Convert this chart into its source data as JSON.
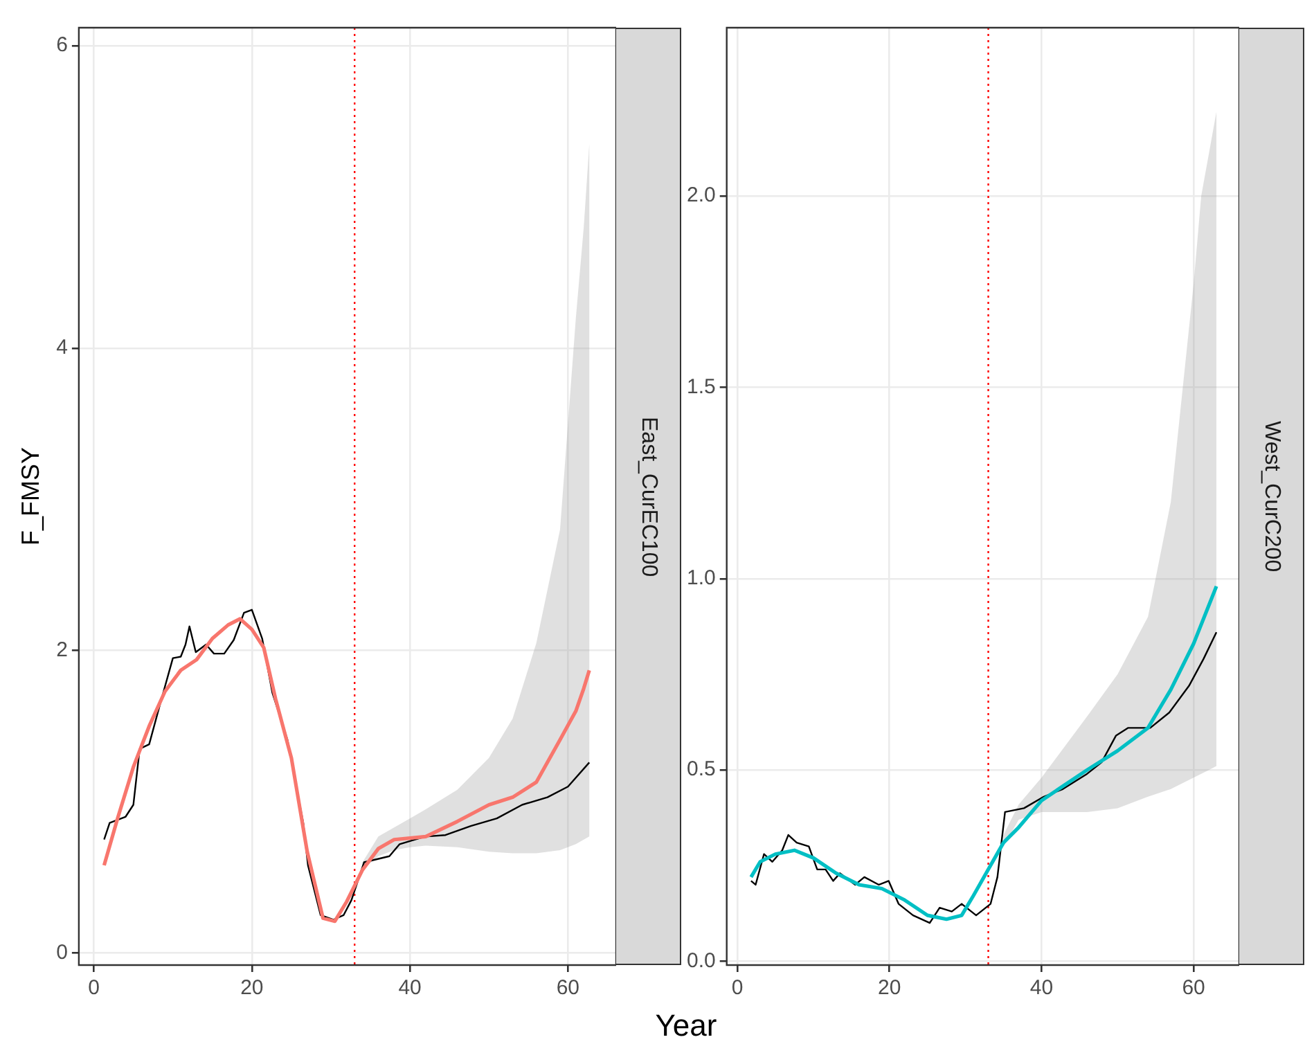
{
  "chart_data": [
    {
      "type": "line",
      "annotations": [
        "East_CurEC100"
      ],
      "ylabel": "F_FMSY",
      "xlabel": "Year",
      "xlim": [
        -1.9,
        66.1
      ],
      "ylim": [
        -0.08,
        6.12
      ],
      "xticks": [
        0,
        20,
        40,
        60
      ],
      "yticks": [
        0,
        2,
        4,
        6
      ],
      "grid": true,
      "ref_lines": [
        {
          "axis": "x",
          "value": 33,
          "color": "#ff0000",
          "line_style": "dotted"
        }
      ],
      "series": [
        {
          "color": "#f8766d",
          "x": [
            1.3,
            3,
            5,
            7,
            9,
            11,
            13,
            15,
            17,
            18.5,
            20,
            21.5,
            23,
            25,
            27,
            29,
            30.5,
            32,
            34,
            36,
            38,
            40,
            42,
            46,
            50,
            53,
            56,
            59,
            61,
            62,
            62.7
          ],
          "values": [
            0.58,
            0.89,
            1.23,
            1.5,
            1.73,
            1.87,
            1.94,
            2.08,
            2.17,
            2.21,
            2.14,
            2.02,
            1.68,
            1.29,
            0.67,
            0.23,
            0.21,
            0.34,
            0.55,
            0.69,
            0.75,
            0.76,
            0.77,
            0.87,
            0.98,
            1.03,
            1.13,
            1.41,
            1.6,
            1.75,
            1.87
          ],
          "lower": [
            null,
            null,
            null,
            null,
            null,
            null,
            null,
            null,
            null,
            null,
            null,
            null,
            null,
            null,
            null,
            null,
            null,
            null,
            0.55,
            0.64,
            0.68,
            0.7,
            0.71,
            0.7,
            0.67,
            0.66,
            0.66,
            0.68,
            0.72,
            0.75,
            0.77
          ],
          "upper": [
            null,
            null,
            null,
            null,
            null,
            null,
            null,
            null,
            null,
            null,
            null,
            null,
            null,
            null,
            null,
            null,
            null,
            null,
            0.6,
            0.77,
            0.83,
            0.89,
            0.95,
            1.08,
            1.29,
            1.55,
            2.05,
            2.8,
            4.2,
            4.8,
            5.35
          ]
        },
        {
          "color": "#000000",
          "x": [
            1.3,
            2,
            4,
            5,
            5.8,
            7,
            8.4,
            10,
            11,
            11.6,
            12.1,
            12.9,
            14.2,
            15.2,
            16.5,
            17.7,
            19,
            20,
            21.3,
            22.6,
            24.5,
            26.5,
            27.1,
            28.7,
            30.3,
            31.6,
            32.6,
            34.2,
            37.4,
            38.7,
            41.9,
            44.5,
            47.7,
            51,
            54.2,
            57.4,
            60,
            62.7
          ],
          "values": [
            0.75,
            0.86,
            0.9,
            0.98,
            1.35,
            1.38,
            1.65,
            1.95,
            1.96,
            2.04,
            2.16,
            1.99,
            2.04,
            1.98,
            1.98,
            2.07,
            2.25,
            2.27,
            2.08,
            1.72,
            1.41,
            0.86,
            0.58,
            0.25,
            0.22,
            0.25,
            0.35,
            0.6,
            0.64,
            0.72,
            0.77,
            0.78,
            0.84,
            0.89,
            0.98,
            1.03,
            1.1,
            1.26
          ]
        }
      ]
    },
    {
      "type": "line",
      "annotations": [
        "West_CurC200"
      ],
      "xlim": [
        -1.4,
        66
      ],
      "ylim": [
        -0.01,
        2.44
      ],
      "xticks": [
        0,
        20,
        40,
        60
      ],
      "yticks": [
        {
          "value": 0,
          "label": "0.0"
        },
        0.5,
        {
          "value": 1,
          "label": "1.0"
        },
        1.5,
        {
          "value": 2,
          "label": "2.0"
        }
      ],
      "grid": true,
      "ref_lines": [
        {
          "axis": "x",
          "value": 33,
          "color": "#ff0000",
          "line_style": "dotted"
        }
      ],
      "series": [
        {
          "color": "#00bfc4",
          "x": [
            1.8,
            3,
            5,
            7.5,
            10,
            13,
            16,
            19,
            22,
            25,
            27.5,
            29.5,
            31,
            33,
            35,
            37,
            40,
            43,
            46,
            50,
            54,
            57,
            60,
            61,
            62,
            63
          ],
          "values": [
            0.22,
            0.26,
            0.28,
            0.29,
            0.27,
            0.23,
            0.2,
            0.19,
            0.16,
            0.12,
            0.11,
            0.12,
            0.17,
            0.24,
            0.31,
            0.35,
            0.42,
            0.46,
            0.5,
            0.55,
            0.61,
            0.71,
            0.83,
            0.88,
            0.93,
            0.98
          ],
          "lower": [
            null,
            null,
            null,
            null,
            null,
            null,
            null,
            null,
            null,
            null,
            null,
            null,
            null,
            null,
            0.3,
            0.37,
            0.39,
            0.39,
            0.39,
            0.4,
            0.43,
            0.45,
            0.48,
            0.49,
            0.5,
            0.51
          ],
          "upper": [
            null,
            null,
            null,
            null,
            null,
            null,
            null,
            null,
            null,
            null,
            null,
            null,
            null,
            null,
            0.33,
            0.41,
            0.48,
            0.56,
            0.64,
            0.75,
            0.9,
            1.2,
            1.77,
            2.0,
            2.11,
            2.22
          ]
        },
        {
          "color": "#000000",
          "x": [
            1.8,
            2.4,
            3.5,
            4.6,
            5.9,
            6.7,
            7.8,
            9.4,
            10.5,
            11.6,
            12.6,
            13.5,
            15.5,
            16.7,
            18.6,
            19.9,
            21.2,
            23.1,
            25.3,
            26.6,
            28.2,
            29.5,
            31.4,
            33.3,
            34.2,
            35.2,
            37.7,
            40.3,
            42.8,
            46,
            47.9,
            49.8,
            51.4,
            54.3,
            56.8,
            59.4,
            61.3,
            63
          ],
          "values": [
            0.21,
            0.2,
            0.28,
            0.26,
            0.29,
            0.33,
            0.31,
            0.3,
            0.24,
            0.24,
            0.21,
            0.23,
            0.2,
            0.22,
            0.2,
            0.21,
            0.15,
            0.12,
            0.1,
            0.14,
            0.13,
            0.15,
            0.12,
            0.15,
            0.22,
            0.39,
            0.4,
            0.43,
            0.45,
            0.49,
            0.52,
            0.59,
            0.61,
            0.61,
            0.65,
            0.72,
            0.79,
            0.86
          ]
        }
      ]
    }
  ]
}
